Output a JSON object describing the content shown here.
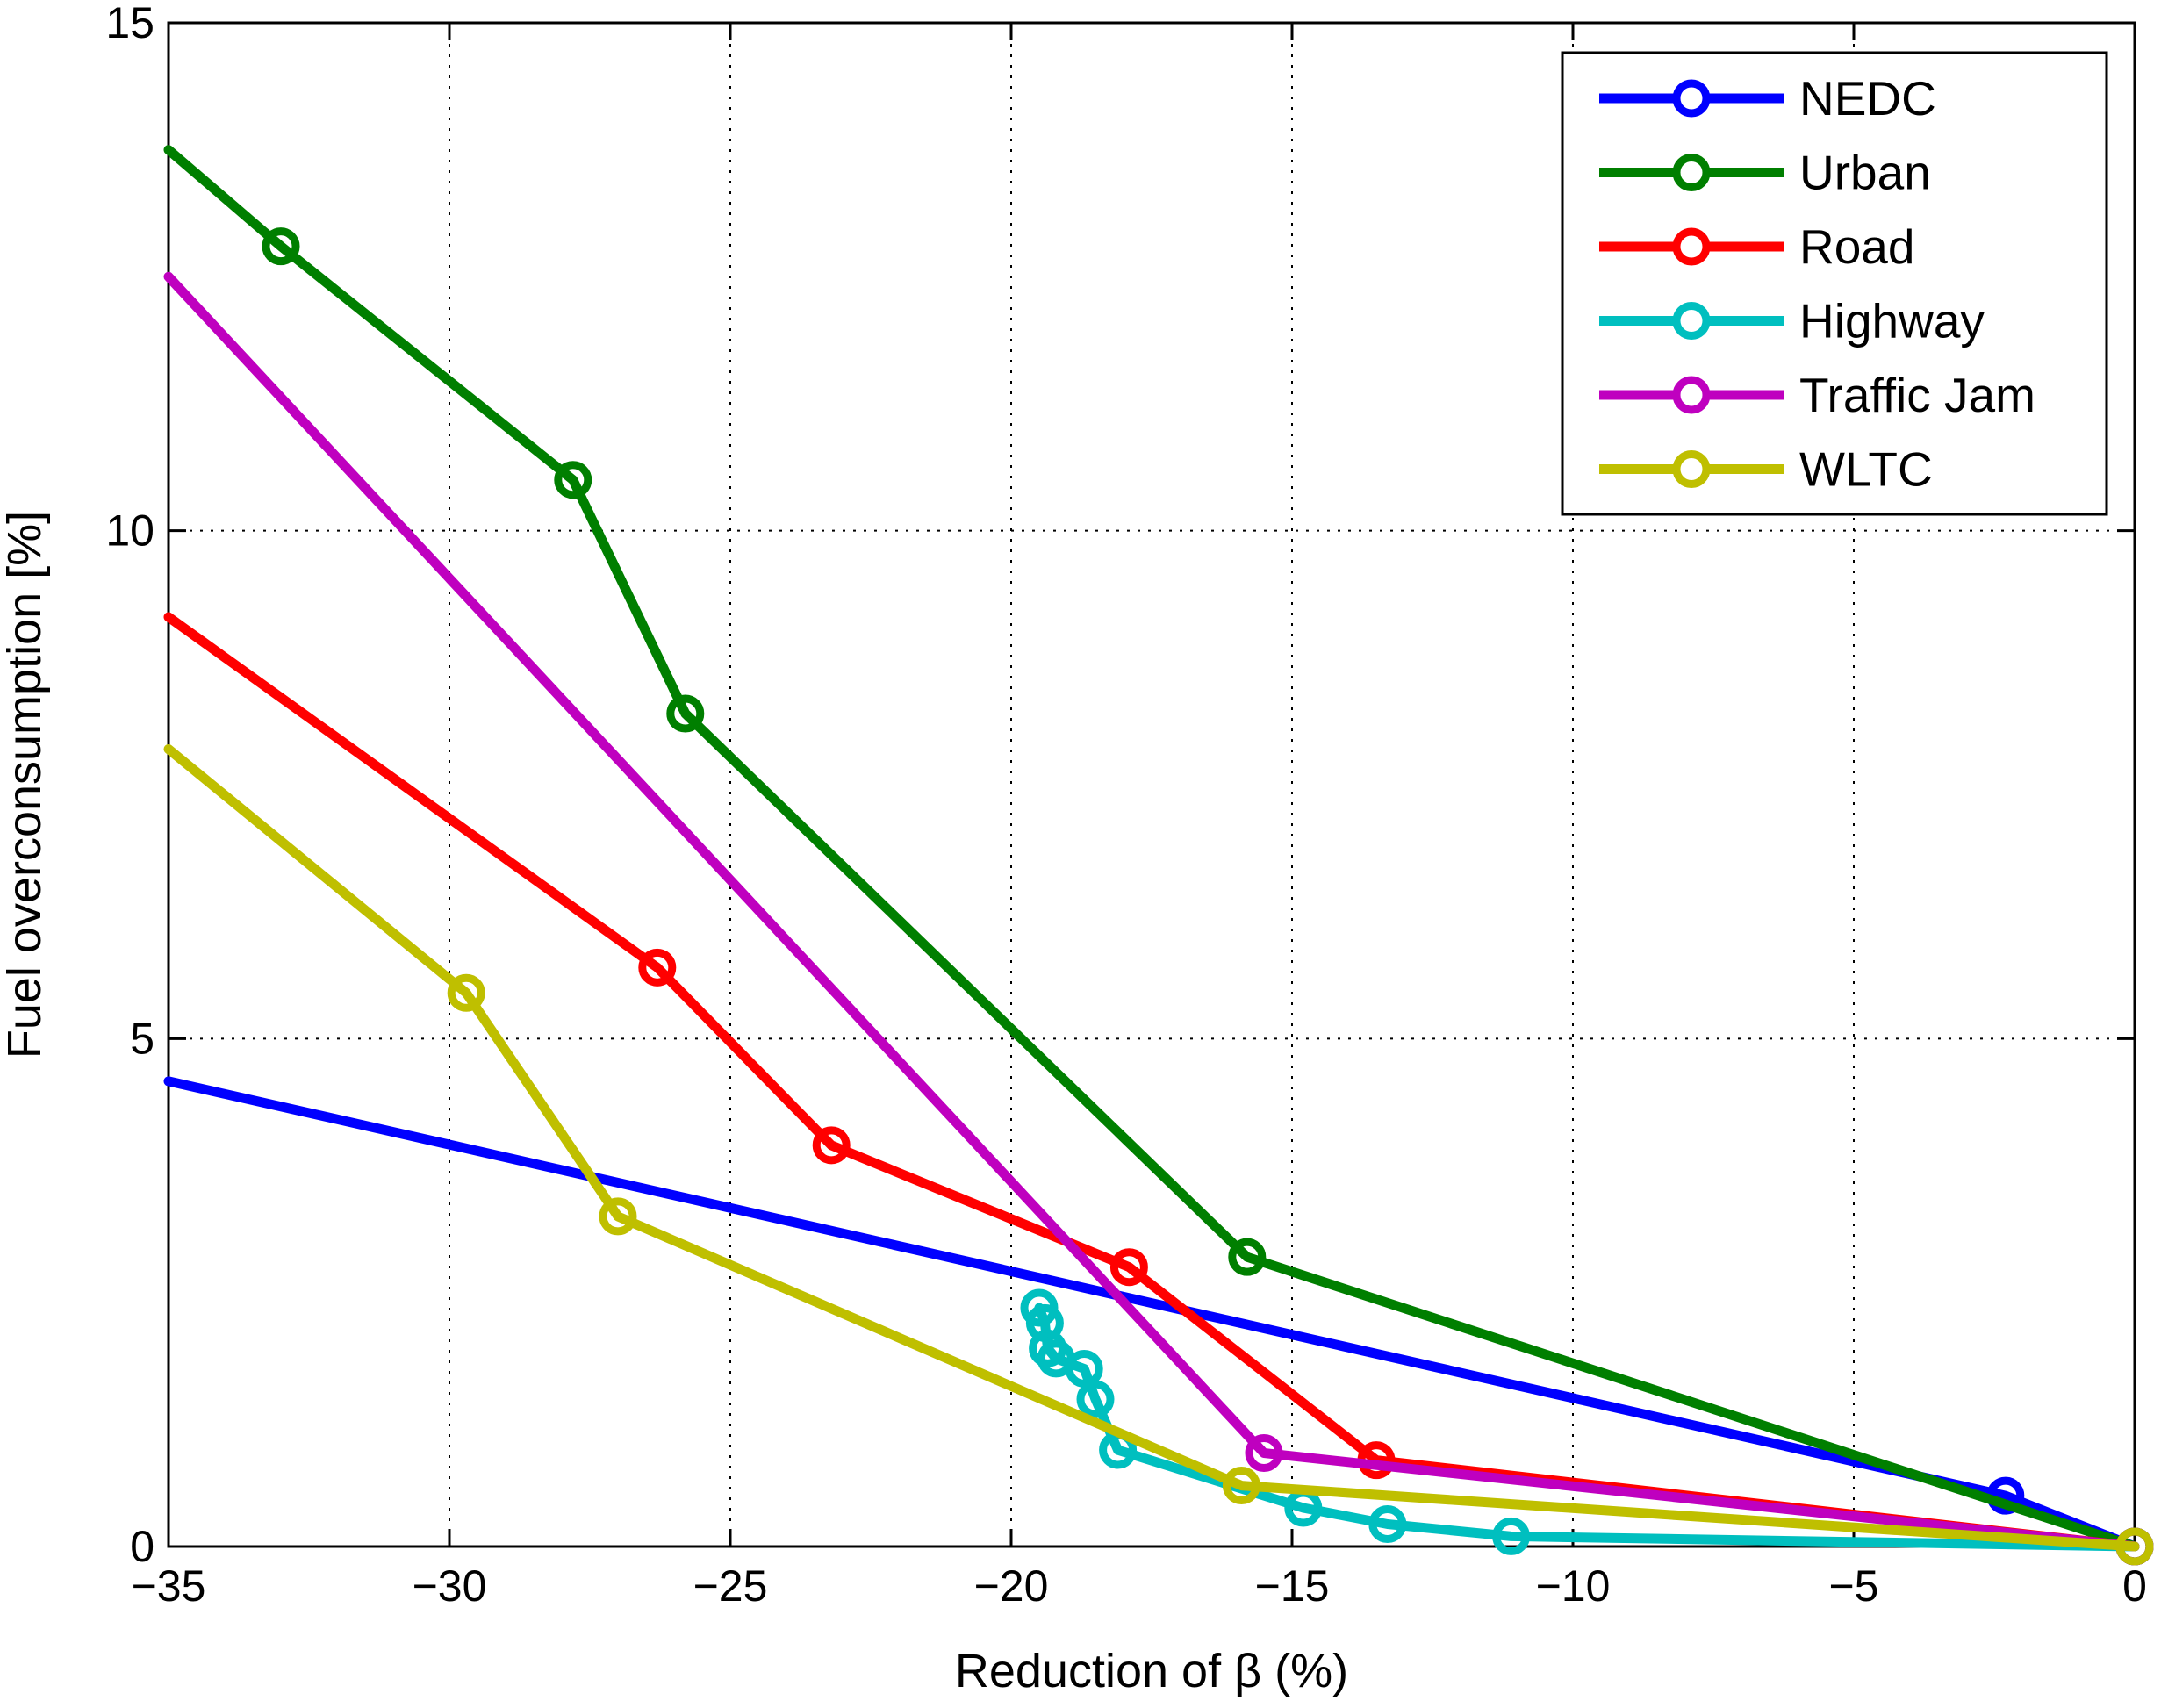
{
  "chart_data": {
    "type": "line",
    "xlabel": "Reduction of β (%)",
    "ylabel": "Fuel overconsumption [%]",
    "xlim": [
      -35,
      0
    ],
    "ylim": [
      0,
      15
    ],
    "xticks": [
      -35,
      -30,
      -25,
      -20,
      -15,
      -10,
      -5,
      0
    ],
    "yticks": [
      0,
      5,
      10,
      15
    ],
    "xtick_labels": [
      "−35",
      "−30",
      "−25",
      "−20",
      "−15",
      "−10",
      "−5",
      "0"
    ],
    "ytick_labels": [
      "0",
      "5",
      "10",
      "15"
    ],
    "grid": true,
    "legend_position": "top-right",
    "series": [
      {
        "name": "NEDC",
        "color": "#0000ff",
        "line": [
          [
            -35,
            4.58
          ],
          [
            -2.3,
            0.5
          ],
          [
            0,
            0
          ]
        ],
        "markers": [
          [
            -2.3,
            0.5
          ],
          [
            0,
            0
          ]
        ]
      },
      {
        "name": "Urban",
        "color": "#007f00",
        "line": [
          [
            -35,
            13.75
          ],
          [
            -33,
            12.8
          ],
          [
            -27.8,
            10.5
          ],
          [
            -25.8,
            8.2
          ],
          [
            -15.8,
            2.85
          ],
          [
            0,
            0
          ]
        ],
        "markers": [
          [
            -33,
            12.8
          ],
          [
            -27.8,
            10.5
          ],
          [
            -25.8,
            8.2
          ],
          [
            -15.8,
            2.85
          ],
          [
            0,
            0
          ]
        ]
      },
      {
        "name": "Road",
        "color": "#ff0000",
        "line": [
          [
            -35,
            9.15
          ],
          [
            -26.3,
            5.7
          ],
          [
            -23.2,
            3.95
          ],
          [
            -17.9,
            2.75
          ],
          [
            -13.5,
            0.85
          ],
          [
            0,
            0
          ]
        ],
        "markers": [
          [
            -26.3,
            5.7
          ],
          [
            -23.2,
            3.95
          ],
          [
            -17.9,
            2.75
          ],
          [
            -13.5,
            0.85
          ],
          [
            0,
            0
          ]
        ]
      },
      {
        "name": "Highway",
        "color": "#00bfbf",
        "line": [
          [
            -19.5,
            2.35
          ],
          [
            -19.4,
            2.2
          ],
          [
            -19.35,
            1.95
          ],
          [
            -19.2,
            1.85
          ],
          [
            -18.7,
            1.75
          ],
          [
            -18.5,
            1.45
          ],
          [
            -18.1,
            0.95
          ],
          [
            -14.8,
            0.38
          ],
          [
            -13.3,
            0.22
          ],
          [
            -11.1,
            0.1
          ],
          [
            0,
            0
          ]
        ],
        "markers": [
          [
            -19.5,
            2.35
          ],
          [
            -19.4,
            2.2
          ],
          [
            -19.35,
            1.95
          ],
          [
            -19.2,
            1.85
          ],
          [
            -18.7,
            1.75
          ],
          [
            -18.5,
            1.45
          ],
          [
            -18.1,
            0.95
          ],
          [
            -14.8,
            0.38
          ],
          [
            -13.3,
            0.22
          ],
          [
            -11.1,
            0.1
          ],
          [
            0,
            0
          ]
        ]
      },
      {
        "name": "Traffic Jam",
        "color": "#bf00bf",
        "line": [
          [
            -35,
            12.5
          ],
          [
            -15.5,
            0.92
          ],
          [
            0,
            0
          ]
        ],
        "markers": [
          [
            -15.5,
            0.92
          ],
          [
            0,
            0
          ]
        ]
      },
      {
        "name": "WLTC",
        "color": "#bfbf00",
        "line": [
          [
            -35,
            7.85
          ],
          [
            -29.7,
            5.45
          ],
          [
            -27,
            3.25
          ],
          [
            -15.9,
            0.6
          ],
          [
            0,
            0
          ]
        ],
        "markers": [
          [
            -29.7,
            5.45
          ],
          [
            -27,
            3.25
          ],
          [
            -15.9,
            0.6
          ],
          [
            0,
            0
          ]
        ]
      }
    ]
  }
}
